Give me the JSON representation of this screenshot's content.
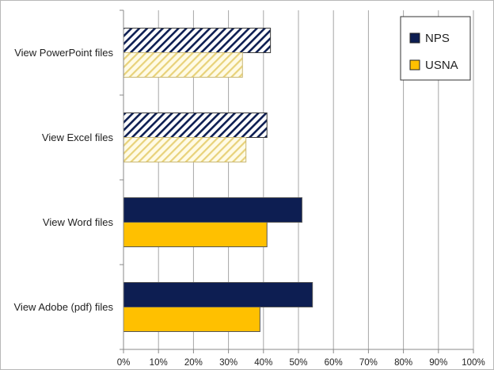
{
  "chart_data": {
    "type": "bar",
    "orientation": "horizontal",
    "categories": [
      "View PowerPoint files",
      "View Excel files",
      "View Word files",
      "View Adobe (pdf) files"
    ],
    "series": [
      {
        "name": "NPS",
        "values": [
          42,
          41,
          51,
          54
        ],
        "color": "#0d1e52",
        "pattern": [
          "hatched",
          "hatched",
          "solid",
          "solid"
        ]
      },
      {
        "name": "USNA",
        "values": [
          34,
          35,
          41,
          39
        ],
        "color": "#ffc000",
        "pattern": [
          "hatched",
          "hatched",
          "solid",
          "solid"
        ]
      }
    ],
    "xlim": [
      0,
      100
    ],
    "x_ticks": [
      "0%",
      "10%",
      "20%",
      "30%",
      "40%",
      "50%",
      "60%",
      "70%",
      "80%",
      "90%",
      "100%"
    ],
    "value_unit": "percent",
    "grid": "vertical gridlines",
    "legend_position": "top-right",
    "title": "",
    "xlabel": "",
    "ylabel": ""
  }
}
